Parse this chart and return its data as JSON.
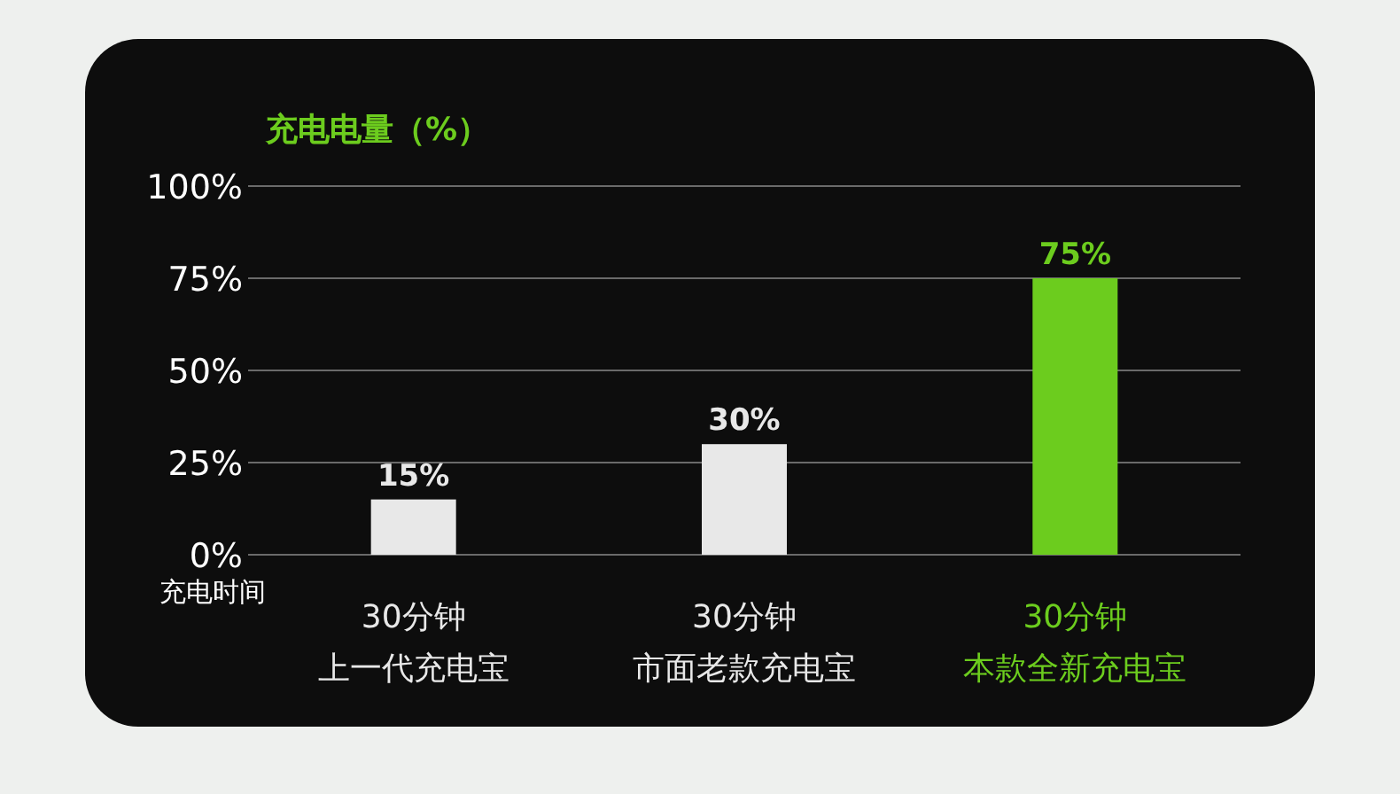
{
  "chart_data": {
    "type": "bar",
    "ylabel": "充电电量（%）",
    "xlabel": "充电时间",
    "categories": [
      "30分钟上一代充电宝",
      "30分钟市面老款充电宝",
      "30分钟本款全新充电宝"
    ],
    "values": [
      15,
      30,
      75
    ],
    "colors": [
      "#e8e8e8",
      "#e8e8e8",
      "#6ccc1e"
    ],
    "value_labels": [
      "15%",
      "30%",
      "75%"
    ],
    "ylim": [
      0,
      100
    ],
    "yticks": [
      {
        "value": 0,
        "label": "0%"
      },
      {
        "value": 25,
        "label": "25%"
      },
      {
        "value": 50,
        "label": "50%"
      },
      {
        "value": 75,
        "label": "75%"
      },
      {
        "value": 100,
        "label": "100%"
      }
    ],
    "grid": "y"
  }
}
